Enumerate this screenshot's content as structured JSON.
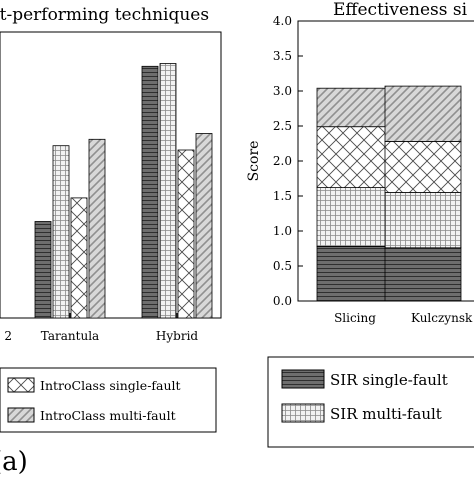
{
  "chart_data": [
    {
      "type": "bar",
      "title": "st-performing techniques",
      "categories": [
        "2",
        "Tarantula",
        "Hybrid"
      ],
      "series": [
        {
          "name": "",
          "pattern": "horizontal-dark",
          "values": [
            null,
            1.35,
            3.52
          ]
        },
        {
          "name": "",
          "pattern": "grid",
          "values": [
            null,
            2.41,
            3.56
          ]
        },
        {
          "name": "IntroClass single-fault",
          "pattern": "crosshatch",
          "values": [
            null,
            1.68,
            2.35
          ]
        },
        {
          "name": "IntroClass multi-fault",
          "pattern": "diagonal",
          "values": [
            null,
            2.5,
            2.58
          ]
        }
      ],
      "ylim": [
        0,
        4
      ],
      "legend": {
        "placement": "bottom",
        "items": [
          "IntroClass single-fault",
          "IntroClass multi-fault"
        ]
      },
      "caption": "(a)"
    },
    {
      "type": "bar",
      "stacked": true,
      "title": "Effectiveness si",
      "ylabel": "Score",
      "ylim": [
        0,
        4
      ],
      "yticks": [
        "0.0",
        "0.5",
        "1.0",
        "1.5",
        "2.0",
        "2.5",
        "3.0",
        "3.5",
        "4.0"
      ],
      "categories": [
        "Slicing",
        "Kulczynsk"
      ],
      "series": [
        {
          "name": "SIR single-fault",
          "pattern": "horizontal-dark",
          "values": [
            0.78,
            0.76
          ]
        },
        {
          "name": "SIR multi-fault",
          "pattern": "grid",
          "values": [
            0.84,
            0.79
          ]
        },
        {
          "name": "",
          "pattern": "crosshatch",
          "values": [
            0.87,
            0.73
          ]
        },
        {
          "name": "",
          "pattern": "diagonal",
          "values": [
            0.55,
            0.79
          ]
        }
      ],
      "legend": {
        "placement": "bottom",
        "items": [
          "SIR single-fault",
          "SIR multi-fault"
        ]
      }
    }
  ]
}
